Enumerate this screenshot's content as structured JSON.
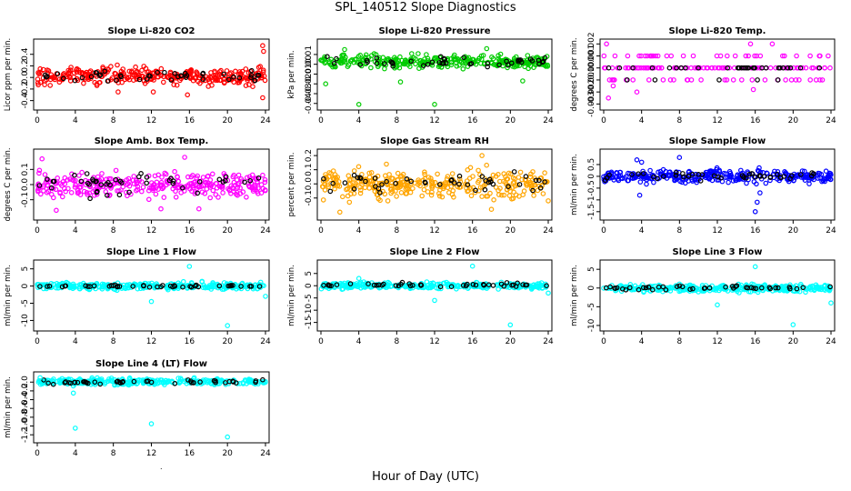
{
  "title": "SPL_140512  Slope Diagnostics",
  "xlabel": "Hour of Day (UTC)",
  "stray_mark": ".",
  "chart_data": [
    {
      "type": "scatter",
      "title": "Slope Li-820 CO2",
      "ylabel": "Licor ppm per min.",
      "xlim": [
        0,
        24
      ],
      "xticks": [
        0,
        4,
        8,
        12,
        16,
        20,
        24
      ],
      "ylim": [
        -0.5,
        0.6
      ],
      "yticks": [
        -0.4,
        -0.2,
        0.0,
        0.2,
        0.4
      ],
      "yticklabels": [
        "-0.4",
        "-0.2",
        "0.0",
        "0.2",
        "0.4"
      ],
      "color": "#ff0000",
      "series_style": "dense band",
      "band": [
        -0.2,
        0.25
      ],
      "sparse": [
        -0.15,
        0.2
      ],
      "outliers": [
        [
          23.7,
          0.55
        ],
        [
          23.8,
          0.45
        ],
        [
          15.8,
          -0.3
        ],
        [
          12.2,
          -0.25
        ],
        [
          8.5,
          -0.25
        ],
        [
          23.7,
          -0.35
        ]
      ]
    },
    {
      "type": "scatter",
      "title": "Slope Li-820 Pressure",
      "ylabel": "kPa per min.",
      "xlim": [
        0,
        24
      ],
      "xticks": [
        0,
        4,
        8,
        12,
        16,
        20,
        24
      ],
      "ylim": [
        -0.043,
        0.022
      ],
      "yticks": [
        -0.04,
        -0.03,
        -0.02,
        -0.01,
        0.0,
        0.01
      ],
      "yticklabels": [
        "-0.04",
        "-0.03",
        "-0.02",
        "-0.01",
        "0.00",
        "0.01"
      ],
      "color": "#00cc00",
      "series_style": "dense band",
      "band": [
        -0.008,
        0.013
      ],
      "sparse": [
        -0.005,
        0.01
      ],
      "outliers": [
        [
          4,
          -0.041
        ],
        [
          12,
          -0.041
        ],
        [
          21.3,
          -0.017
        ],
        [
          8.4,
          -0.018
        ],
        [
          0.5,
          -0.02
        ],
        [
          2.5,
          0.015
        ],
        [
          17.5,
          0.016
        ]
      ]
    },
    {
      "type": "scatter",
      "title": "Slope Li-820 Temp.",
      "ylabel": "degrees C per min.",
      "xlim": [
        0,
        24
      ],
      "xticks": [
        0,
        4,
        8,
        12,
        16,
        20,
        24
      ],
      "ylim": [
        -0.0032,
        0.0021
      ],
      "yticks": [
        -0.003,
        -0.002,
        -0.001,
        0.0,
        0.001,
        0.002
      ],
      "yticklabels": [
        "-0.003",
        "-0.002",
        "-0.001",
        "0.000",
        "0.001",
        "0.002"
      ],
      "color": "#ff00ff",
      "series_style": "levels",
      "levels": [
        0.001,
        0.0,
        -0.001
      ],
      "outliers": [
        [
          0.3,
          0.002
        ],
        [
          17.8,
          0.002
        ],
        [
          15.5,
          0.002
        ],
        [
          0.5,
          -0.0025
        ],
        [
          3.5,
          -0.002
        ],
        [
          15.8,
          -0.0018
        ],
        [
          1,
          -0.0015
        ]
      ]
    },
    {
      "type": "scatter",
      "title": "Slope Amb. Box Temp.",
      "ylabel": "degrees C per min.",
      "xlim": [
        0,
        24
      ],
      "xticks": [
        0,
        4,
        8,
        12,
        16,
        20,
        24
      ],
      "ylim": [
        -0.21,
        0.21
      ],
      "yticks": [
        -0.1,
        0.0,
        0.1
      ],
      "yticklabels": [
        "-0.1",
        "0.0",
        "0.1"
      ],
      "color": "#ff00ff",
      "series_style": "dense band",
      "band": [
        -0.13,
        0.13
      ],
      "sparse": [
        -0.12,
        0.12
      ],
      "outliers": [
        [
          0.5,
          0.17
        ],
        [
          15.5,
          0.18
        ],
        [
          2,
          -0.17
        ],
        [
          13,
          -0.16
        ],
        [
          17,
          -0.16
        ]
      ]
    },
    {
      "type": "scatter",
      "title": "Slope Gas Stream RH",
      "ylabel": "percent per min.",
      "xlim": [
        0,
        24
      ],
      "xticks": [
        0,
        4,
        8,
        12,
        16,
        20,
        24
      ],
      "ylim": [
        -0.23,
        0.22
      ],
      "yticks": [
        -0.1,
        0.0,
        0.1,
        0.2
      ],
      "yticklabels": [
        "-0.1",
        "0.0",
        "0.1",
        "0.2"
      ],
      "color": "#ffa500",
      "series_style": "dense band",
      "band": [
        -0.15,
        0.15
      ],
      "sparse": [
        -0.12,
        0.12
      ],
      "outliers": [
        [
          17,
          0.2
        ],
        [
          2,
          -0.2
        ],
        [
          18,
          -0.18
        ],
        [
          24,
          -0.12
        ],
        [
          3,
          -0.13
        ]
      ]
    },
    {
      "type": "scatter",
      "title": "Slope Sample Flow",
      "ylabel": "ml/min per min.",
      "xlim": [
        0,
        24
      ],
      "xticks": [
        0,
        4,
        8,
        12,
        16,
        20,
        24
      ],
      "ylim": [
        -1.7,
        1.0
      ],
      "yticks": [
        -1.5,
        -1.0,
        -0.5,
        0.0,
        0.5
      ],
      "yticklabels": [
        "-1.5",
        "-1",
        "-0.5",
        "0",
        "0.5"
      ],
      "color": "#0000ff",
      "series_style": "dense band",
      "band": [
        -0.4,
        0.4
      ],
      "sparse": [
        -0.3,
        0.3
      ],
      "outliers": [
        [
          16,
          -1.5
        ],
        [
          16.2,
          -1.1
        ],
        [
          3.5,
          0.7
        ],
        [
          4,
          0.6
        ],
        [
          8,
          0.8
        ],
        [
          3.8,
          -0.8
        ],
        [
          16.5,
          -0.7
        ]
      ]
    },
    {
      "type": "scatter",
      "title": "Slope Line 1 Flow",
      "ylabel": "ml/min per min.",
      "xlim": [
        0,
        24
      ],
      "xticks": [
        0,
        4,
        8,
        12,
        16,
        20,
        24
      ],
      "ylim": [
        -12,
        6.5
      ],
      "yticks": [
        -10,
        -5,
        0,
        5
      ],
      "yticklabels": [
        "-10",
        "-5",
        "0",
        "5"
      ],
      "color": "#00ffff",
      "series_style": "dense band",
      "band": [
        -1.5,
        1.5
      ],
      "sparse": [
        -0.5,
        0.5
      ],
      "outliers": [
        [
          16,
          5.7
        ],
        [
          12,
          -4.5
        ],
        [
          20,
          -11.5
        ],
        [
          24,
          -3
        ]
      ]
    },
    {
      "type": "scatter",
      "title": "Slope Line 2 Flow",
      "ylabel": "ml/min per min.",
      "xlim": [
        0,
        24
      ],
      "xticks": [
        0,
        4,
        8,
        12,
        16,
        20,
        24
      ],
      "ylim": [
        -17,
        9
      ],
      "yticks": [
        -15,
        -10,
        -5,
        0,
        5
      ],
      "yticklabels": [
        "-15",
        "-10",
        "-5",
        "0",
        "5"
      ],
      "color": "#00ffff",
      "series_style": "dense band",
      "band": [
        -2,
        2
      ],
      "sparse": [
        -1,
        1.5
      ],
      "outliers": [
        [
          16,
          8
        ],
        [
          12,
          -6
        ],
        [
          20,
          -16
        ],
        [
          24,
          -3
        ],
        [
          4,
          3
        ]
      ]
    },
    {
      "type": "scatter",
      "title": "Slope Line 3 Flow",
      "ylabel": "ml/min per min.",
      "xlim": [
        0,
        24
      ],
      "xticks": [
        0,
        4,
        8,
        12,
        16,
        20,
        24
      ],
      "ylim": [
        -10.5,
        6.5
      ],
      "yticks": [
        -10,
        -5,
        0,
        5
      ],
      "yticklabels": [
        "-10",
        "-5",
        "0",
        "5"
      ],
      "color": "#00ffff",
      "series_style": "dense band",
      "band": [
        -1.5,
        1.5
      ],
      "sparse": [
        -1,
        1
      ],
      "outliers": [
        [
          16,
          5.7
        ],
        [
          12,
          -4.5
        ],
        [
          20,
          -9.8
        ],
        [
          24,
          -4
        ]
      ]
    },
    {
      "type": "scatter",
      "title": "Slope Line 4 (LT) Flow",
      "ylabel": "ml/min per min.",
      "xlim": [
        0,
        24
      ],
      "xticks": [
        0,
        4,
        8,
        12,
        16,
        20,
        24
      ],
      "ylim": [
        -1.3,
        0.15
      ],
      "yticks": [
        -1.2,
        -1.0,
        -0.8,
        -0.6,
        -0.4,
        -0.2,
        0.0
      ],
      "yticklabels": [
        "-1.2",
        "-1.0",
        "-0.8",
        "-0.6",
        "-0.4",
        "-0.2",
        "0.0"
      ],
      "color": "#00ffff",
      "series_style": "dense band",
      "band": [
        -0.1,
        0.12
      ],
      "sparse": [
        -0.08,
        0.08
      ],
      "outliers": [
        [
          4,
          -1.05
        ],
        [
          12,
          -0.95
        ],
        [
          20,
          -1.25
        ],
        [
          3.8,
          -0.25
        ],
        [
          16.5,
          0.1
        ],
        [
          0.3,
          0.1
        ]
      ]
    }
  ]
}
